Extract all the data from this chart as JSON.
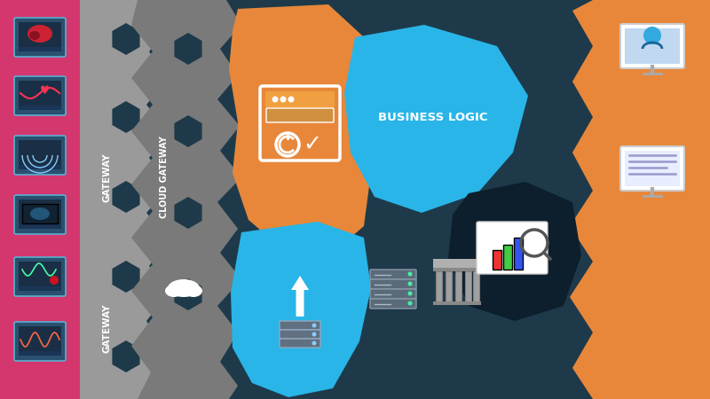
{
  "bg_color": "#ffffff",
  "pink_color": "#d4366e",
  "gray1_color": "#9a9a9a",
  "gray2_color": "#7a7a7a",
  "dark_teal_color": "#1e3a4a",
  "orange_color": "#e8873a",
  "blue_color": "#29b5e8",
  "dark_navy_color": "#0d1f2d",
  "white_color": "#ffffff",
  "gateway1_text": "GATEWAY",
  "cloud_gateway_text": "CLOUD GATEWAY",
  "gateway2_text": "GATEWAY",
  "business_logic_text": "BUSINESS LOGIC"
}
